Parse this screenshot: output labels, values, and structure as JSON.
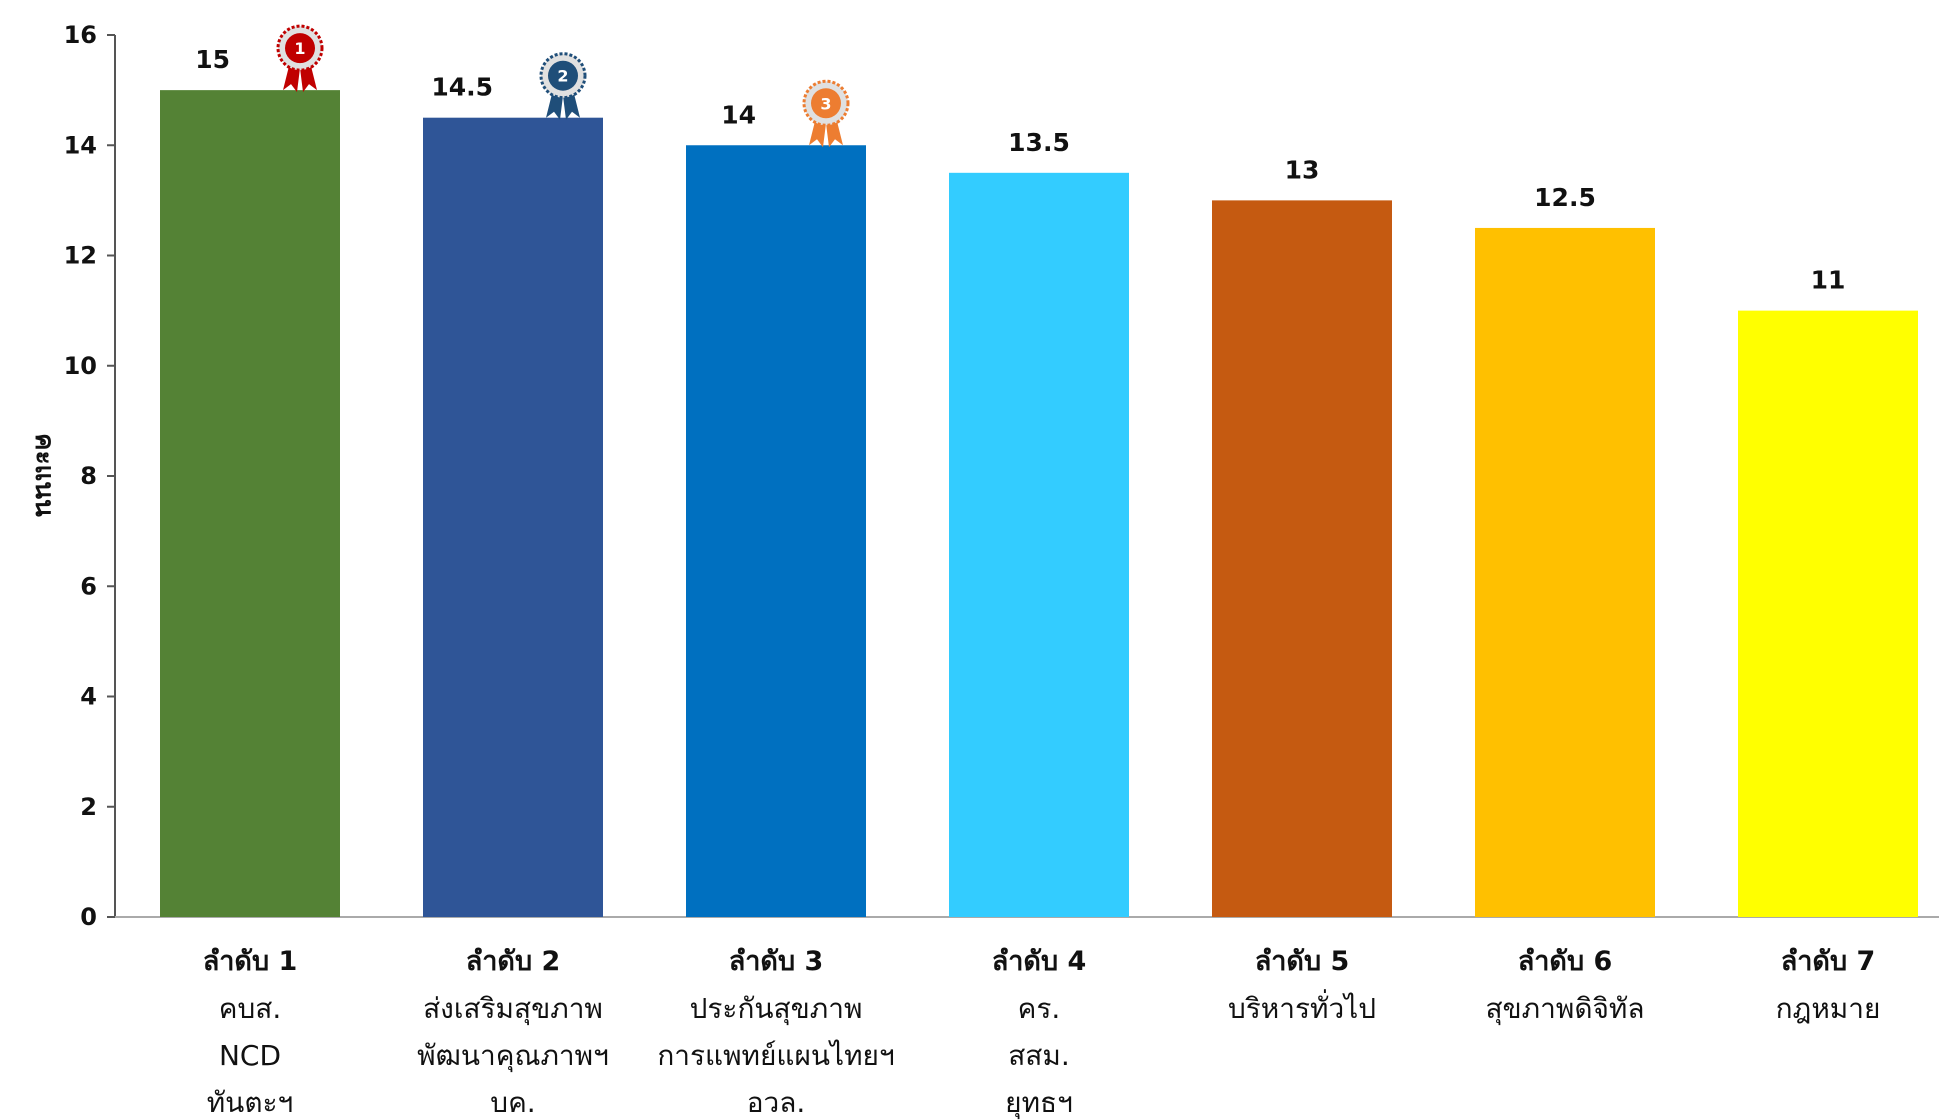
{
  "chart_data": {
    "type": "bar",
    "ylabel": "คะแนน",
    "ylim": [
      0,
      16
    ],
    "y_ticks": [
      0,
      2,
      4,
      6,
      8,
      10,
      12,
      14,
      16
    ],
    "grid": false,
    "categories": [
      {
        "rank": "ลำดับ 1",
        "lines": [
          "คบส.",
          "NCD",
          "ทันตะฯ"
        ]
      },
      {
        "rank": "ลำดับ 2",
        "lines": [
          "ส่งเสริมสุขภาพ",
          "พัฒนาคุณภาพฯ",
          "บค."
        ]
      },
      {
        "rank": "ลำดับ 3",
        "lines": [
          "ประกันสุขภาพ",
          "การแพทย์แผนไทยฯ",
          "อวล."
        ]
      },
      {
        "rank": "ลำดับ 4",
        "lines": [
          "คร.",
          "สสม.",
          "ยุทธฯ"
        ]
      },
      {
        "rank": "ลำดับ 5",
        "lines": [
          "บริหารทั่วไป"
        ]
      },
      {
        "rank": "ลำดับ 6",
        "lines": [
          "สุขภาพดิจิทัล"
        ]
      },
      {
        "rank": "ลำดับ 7",
        "lines": [
          "กฎหมาย"
        ]
      }
    ],
    "values": [
      15,
      14.5,
      14,
      13.5,
      13,
      12.5,
      11
    ],
    "value_labels": [
      "15",
      "14.5",
      "14",
      "13.5",
      "13",
      "12.5",
      "11"
    ],
    "bar_colors": [
      "#548235",
      "#2F5597",
      "#0070C0",
      "#33CCFF",
      "#C55A11",
      "#FFC000",
      "#FFFF00"
    ],
    "medals": [
      {
        "rank_index": 0,
        "number": "1",
        "color": "#C00000",
        "icon": "gold-medal-ribbon-icon"
      },
      {
        "rank_index": 1,
        "number": "2",
        "color": "#1F4E79",
        "icon": "silver-medal-ribbon-icon"
      },
      {
        "rank_index": 2,
        "number": "3",
        "color": "#ED7D31",
        "icon": "bronze-medal-ribbon-icon"
      }
    ]
  }
}
